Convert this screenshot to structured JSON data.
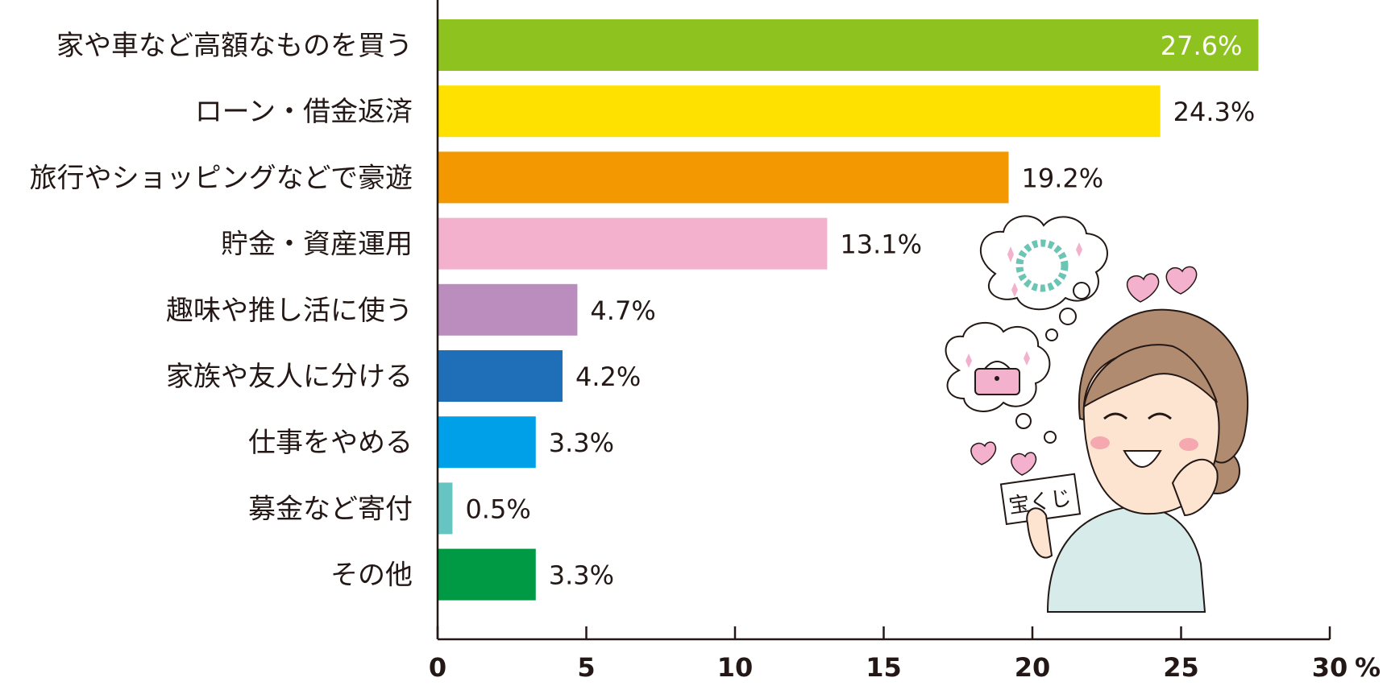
{
  "chart_data": {
    "type": "bar",
    "orientation": "horizontal",
    "categories": [
      "家や車など高額なものを買う",
      "ローン・借金返済",
      "旅行やショッピングなどで豪遊",
      "貯金・資産運用",
      "趣味や推し活に使う",
      "家族や友人に分ける",
      "仕事をやめる",
      "募金など寄付",
      "その他"
    ],
    "values": [
      27.6,
      24.3,
      19.2,
      13.1,
      4.7,
      4.2,
      3.3,
      0.5,
      3.3
    ],
    "value_labels": [
      "27.6%",
      "24.3%",
      "19.2%",
      "13.1%",
      "4.7%",
      "4.2%",
      "3.3%",
      "0.5%",
      "3.3%"
    ],
    "colors": [
      "#8dc21f",
      "#ffe100",
      "#f39800",
      "#f3b1cd",
      "#bb8dbf",
      "#1e6fb8",
      "#00a0e9",
      "#66c5c2",
      "#009944"
    ],
    "xlim": [
      0,
      30
    ],
    "xticks": [
      0,
      5,
      10,
      15,
      20,
      25,
      30
    ],
    "unit": "%",
    "grid": false
  },
  "illustration": {
    "ticket_text": "宝くじ"
  }
}
